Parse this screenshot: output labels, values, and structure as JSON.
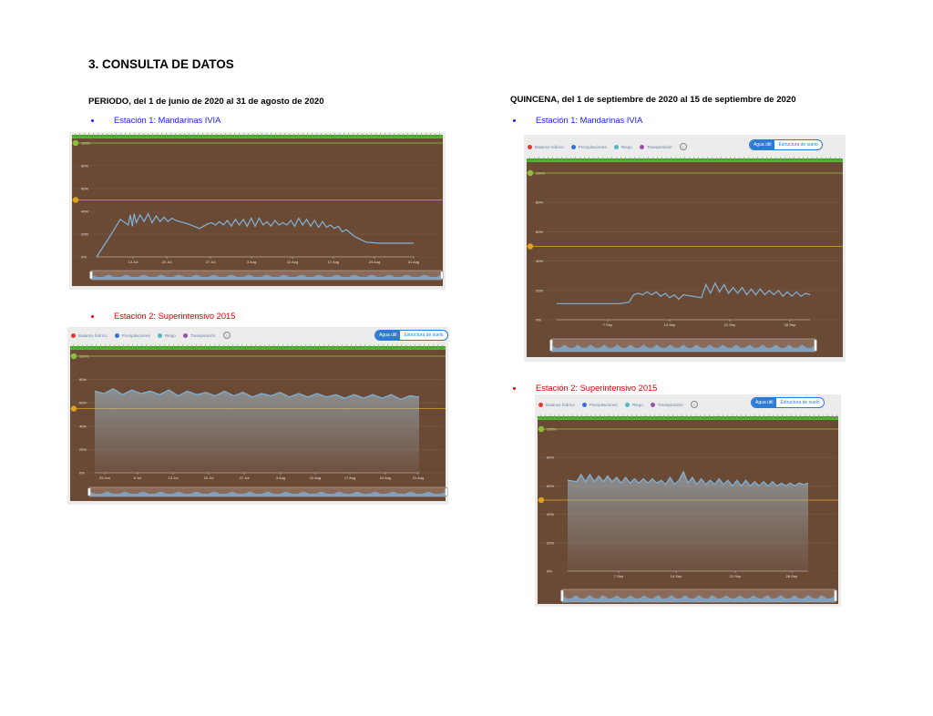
{
  "section_title": "3. CONSULTA DE DATOS",
  "periodo_heading": "PERIODO, del 1 de junio de 2020 al 31 de agosto de 2020",
  "quincena_heading": "QUINCENA, del 1 de septiembre de 2020 al 15 de septiembre de 2020",
  "legend": {
    "balance": "Balance hídrico",
    "precip": "Precipitaciones",
    "riego": "Riego",
    "transp": "Transpiración",
    "help": "?"
  },
  "toggle": {
    "agua": "Agua útil",
    "estructura": "Estructura de suelo"
  },
  "colors": {
    "soil": "#6b4a35",
    "line": "#7fb3d9",
    "green": "#8fbf3a",
    "orange": "#e0a020",
    "grass": "#3f9a2a",
    "accent": "#2e7bd6"
  },
  "panels": {
    "p1": {
      "label": "Estación 1: Mandarinas IVIA"
    },
    "p2": {
      "label": "Estación 2: Superintensivo 2015"
    },
    "p3": {
      "label": "Estación 1: Mandarinas IVIA"
    },
    "p4": {
      "label": "Estación 2: Superintensivo 2015"
    }
  },
  "chart_data": [
    {
      "type": "line",
      "panel": "PERIODO - Estación 1",
      "y_ticks": [
        "0%",
        "20%",
        "40%",
        "60%",
        "80%",
        "100%"
      ],
      "ylim": [
        0,
        100
      ],
      "x_ticks": [
        "13 Jul",
        "20 Jul",
        "27 Jul",
        "3 Aug",
        "10 Aug",
        "17 Aug",
        "24 Aug",
        "31 Aug"
      ],
      "x": [
        0,
        6,
        12,
        16,
        17,
        18,
        19,
        20,
        22,
        24,
        26,
        28,
        30,
        32,
        34,
        36,
        38,
        40,
        46,
        52,
        56,
        58,
        60,
        62,
        64,
        66,
        68,
        70,
        72,
        74,
        76,
        78,
        80,
        82,
        84,
        86,
        88,
        90,
        92,
        94,
        96,
        98,
        100,
        102,
        104,
        106,
        108,
        110,
        112,
        114,
        116,
        118,
        120,
        122,
        124,
        126,
        130,
        136,
        142,
        150,
        160
      ],
      "y": [
        0,
        16,
        33,
        28,
        37,
        27,
        38,
        30,
        37,
        31,
        38,
        30,
        36,
        31,
        35,
        31,
        34,
        32,
        29,
        25,
        29,
        30,
        28,
        31,
        28,
        32,
        27,
        33,
        28,
        33,
        27,
        34,
        27,
        34,
        28,
        31,
        27,
        32,
        28,
        30,
        28,
        32,
        27,
        34,
        28,
        33,
        27,
        32,
        26,
        31,
        26,
        28,
        25,
        27,
        22,
        24,
        18,
        13,
        12,
        12,
        12
      ],
      "thresholds": [
        100,
        50
      ]
    },
    {
      "type": "area",
      "panel": "PERIODO - Estación 2",
      "y_ticks": [
        "0%",
        "20%",
        "40%",
        "60%",
        "80%",
        "100%"
      ],
      "ylim": [
        0,
        100
      ],
      "x_ticks": [
        "29 Jun",
        "6 Jul",
        "13 Jul",
        "20 Jul",
        "27 Jul",
        "3 Aug",
        "10 Aug",
        "17 Aug",
        "24 Aug",
        "31 Aug"
      ],
      "x": [
        0,
        10,
        20,
        30,
        40,
        50,
        60,
        70,
        80,
        90,
        100,
        110,
        120,
        130,
        140,
        150,
        160,
        170,
        180,
        190,
        200,
        210,
        220,
        230,
        240,
        250,
        260,
        270,
        280,
        290,
        300,
        310,
        320,
        330,
        340,
        350
      ],
      "y": [
        70,
        68,
        72,
        67,
        71,
        68,
        70,
        67,
        71,
        66,
        70,
        67,
        69,
        66,
        70,
        66,
        69,
        65,
        68,
        66,
        69,
        65,
        68,
        65,
        68,
        65,
        67,
        64,
        67,
        64,
        67,
        64,
        67,
        63,
        66,
        65
      ],
      "thresholds": [
        100,
        55
      ]
    },
    {
      "type": "line",
      "panel": "QUINCENA - Estación 1",
      "y_ticks": [
        "0%",
        "20%",
        "40%",
        "60%",
        "80%",
        "100%"
      ],
      "ylim": [
        0,
        100
      ],
      "x_ticks": [
        "7 Sep",
        "14 Sep",
        "21 Sep",
        "28 Sep"
      ],
      "x": [
        0,
        10,
        20,
        30,
        40,
        50,
        60,
        70,
        80,
        85,
        90,
        95,
        100,
        105,
        110,
        115,
        120,
        125,
        130,
        135,
        140,
        150,
        160,
        165,
        170,
        175,
        180,
        185,
        190,
        195,
        200,
        205,
        210,
        215,
        220,
        225,
        230,
        235,
        240,
        245,
        250,
        255,
        260,
        265,
        270,
        275,
        280
      ],
      "y": [
        11,
        11,
        11,
        11,
        11,
        11,
        11,
        11,
        12,
        17,
        18,
        17,
        19,
        17,
        19,
        16,
        18,
        15,
        17,
        14,
        17,
        16,
        15,
        24,
        18,
        25,
        19,
        24,
        18,
        22,
        18,
        22,
        17,
        21,
        17,
        21,
        17,
        20,
        17,
        20,
        16,
        19,
        16,
        19,
        16,
        18,
        17
      ],
      "thresholds": [
        100,
        50
      ]
    },
    {
      "type": "area",
      "panel": "QUINCENA - Estación 2",
      "y_ticks": [
        "0%",
        "20%",
        "40%",
        "60%",
        "80%",
        "100%"
      ],
      "ylim": [
        0,
        100
      ],
      "x_ticks": [
        "7 Sep",
        "14 Sep",
        "21 Sep",
        "28 Sep"
      ],
      "x": [
        0,
        10,
        15,
        20,
        25,
        30,
        35,
        40,
        45,
        50,
        55,
        60,
        65,
        70,
        75,
        80,
        85,
        90,
        95,
        100,
        105,
        110,
        115,
        120,
        125,
        130,
        135,
        140,
        145,
        150,
        155,
        160,
        165,
        170,
        175,
        180,
        185,
        190,
        195,
        200,
        205,
        210,
        215,
        220,
        225,
        230,
        235,
        240,
        245,
        250,
        255,
        260,
        265,
        270
      ],
      "y": [
        64,
        63,
        68,
        63,
        68,
        63,
        67,
        63,
        67,
        63,
        66,
        62,
        66,
        62,
        65,
        62,
        65,
        62,
        65,
        62,
        64,
        61,
        66,
        61,
        64,
        70,
        62,
        66,
        61,
        65,
        61,
        64,
        61,
        65,
        61,
        64,
        60,
        64,
        60,
        64,
        60,
        63,
        60,
        63,
        60,
        63,
        60,
        62,
        60,
        62,
        60,
        62,
        61,
        62
      ],
      "thresholds": [
        100,
        50
      ]
    }
  ]
}
